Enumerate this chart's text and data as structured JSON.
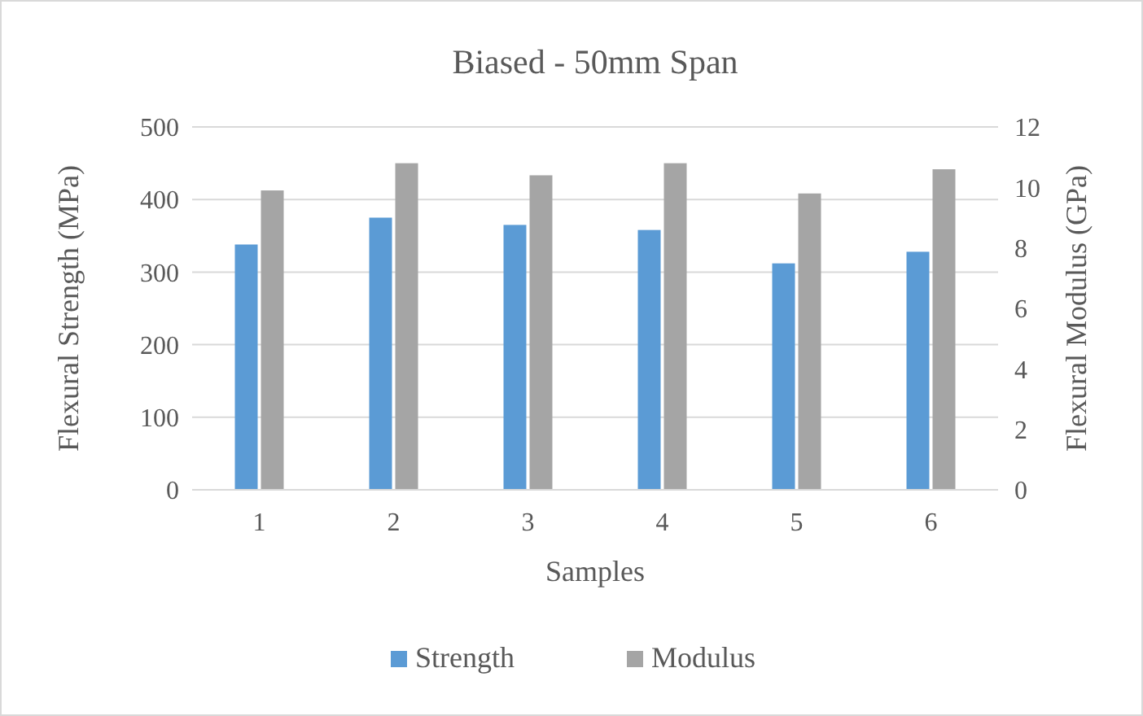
{
  "chart_data": {
    "type": "bar",
    "title": "Biased - 50mm Span",
    "xlabel": "Samples",
    "ylabel": "Flexural Strength (MPa)",
    "y2label": "Flexural Modulus (GPa)",
    "categories": [
      "1",
      "2",
      "3",
      "4",
      "5",
      "6"
    ],
    "series": [
      {
        "name": "Strength",
        "color": "#5b9bd5",
        "values": [
          338,
          375,
          365,
          358,
          312,
          328
        ]
      },
      {
        "name": "Modulus",
        "color": "#a5a5a5",
        "axis": "y2",
        "values": [
          9.9,
          10.8,
          10.4,
          10.8,
          9.8,
          10.6
        ]
      }
    ],
    "ylim": [
      0,
      500
    ],
    "yticks": [
      0,
      100,
      200,
      300,
      400,
      500
    ],
    "y2lim": [
      0,
      12
    ],
    "y2ticks": [
      0,
      2,
      4,
      6,
      8,
      10,
      12
    ],
    "grid": "y",
    "legend": "bottom"
  }
}
